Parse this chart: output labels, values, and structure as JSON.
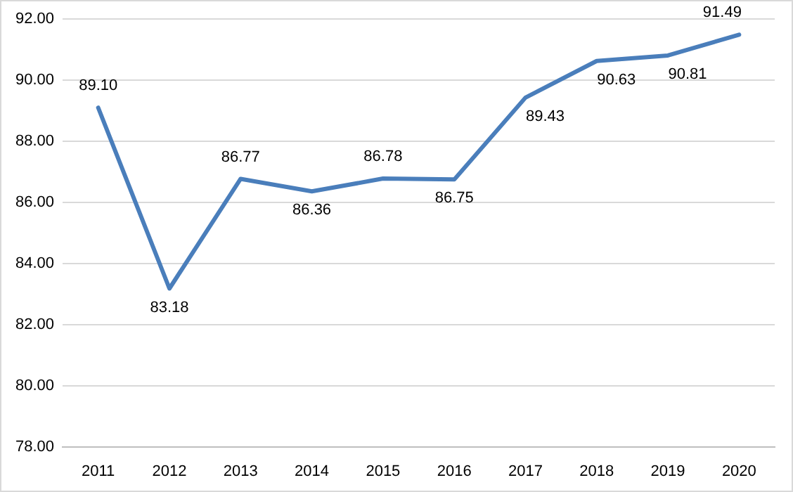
{
  "chart_data": {
    "type": "line",
    "categories": [
      "2011",
      "2012",
      "2013",
      "2014",
      "2015",
      "2016",
      "2017",
      "2018",
      "2019",
      "2020"
    ],
    "series": [
      {
        "color": "#4a7ebb",
        "values": [
          89.1,
          83.18,
          86.77,
          86.36,
          86.78,
          86.75,
          89.43,
          90.63,
          90.81,
          91.49
        ],
        "value_labels": [
          "89.10",
          "83.18",
          "86.77",
          "86.36",
          "86.78",
          "86.75",
          "89.43",
          "90.63",
          "90.81",
          "91.49"
        ]
      }
    ],
    "ylim": [
      78,
      92
    ],
    "yticks": [
      {
        "value": 78,
        "label": "78.00"
      },
      {
        "value": 80,
        "label": "80.00"
      },
      {
        "value": 82,
        "label": "82.00"
      },
      {
        "value": 84,
        "label": "84.00"
      },
      {
        "value": 86,
        "label": "86.00"
      },
      {
        "value": 88,
        "label": "88.00"
      },
      {
        "value": 90,
        "label": "90.00"
      },
      {
        "value": 92,
        "label": "92.00"
      }
    ],
    "grid": "y",
    "legend": false,
    "marker": "none",
    "line_style": "solid"
  }
}
